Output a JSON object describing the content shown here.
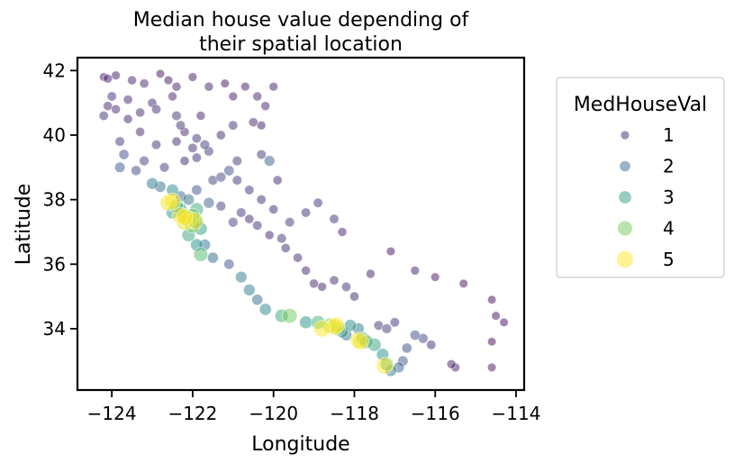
{
  "chart_data": {
    "type": "scatter",
    "title_lines": [
      "Median house value depending of",
      "their spatial location"
    ],
    "xlabel": "Longitude",
    "ylabel": "Latitude",
    "xlim": [
      -124.85,
      -113.8
    ],
    "ylim": [
      32.1,
      42.4
    ],
    "xticks": [
      -124,
      -122,
      -120,
      -118,
      -116,
      -114
    ],
    "xtick_labels": [
      "−124",
      "−122",
      "−120",
      "−118",
      "−116",
      "−114"
    ],
    "yticks": [
      34,
      36,
      38,
      40,
      42
    ],
    "ytick_labels": [
      "34",
      "36",
      "38",
      "40",
      "42"
    ],
    "grid": false,
    "legend": {
      "title": "MedHouseVal",
      "placement": "outside-right",
      "entries": [
        {
          "label": "1",
          "value": 1,
          "color": "#443983"
        },
        {
          "label": "2",
          "value": 2,
          "color": "#31688e"
        },
        {
          "label": "3",
          "value": 3,
          "color": "#21918c"
        },
        {
          "label": "4",
          "value": 4,
          "color": "#5ec962"
        },
        {
          "label": "5",
          "value": 5,
          "color": "#fde725"
        }
      ]
    },
    "colormap": "viridis",
    "size_by": "MedHouseVal",
    "hue_by": "MedHouseVal",
    "point_alpha": 0.5,
    "points": [
      [
        -124.2,
        41.8,
        0.7
      ],
      [
        -124.1,
        41.75,
        0.9
      ],
      [
        -123.9,
        41.85,
        0.8
      ],
      [
        -123.5,
        41.7,
        0.9
      ],
      [
        -123.2,
        41.6,
        1.0
      ],
      [
        -122.8,
        41.9,
        0.7
      ],
      [
        -122.6,
        41.7,
        0.8
      ],
      [
        -122.4,
        41.5,
        0.9
      ],
      [
        -122.0,
        41.8,
        0.8
      ],
      [
        -121.6,
        41.5,
        0.9
      ],
      [
        -121.2,
        41.6,
        0.7
      ],
      [
        -120.7,
        41.5,
        0.8
      ],
      [
        -120.4,
        41.2,
        0.9
      ],
      [
        -120.2,
        40.9,
        0.9
      ],
      [
        -120.5,
        40.4,
        1.0
      ],
      [
        -121.0,
        40.3,
        1.1
      ],
      [
        -124.1,
        40.9,
        1.0
      ],
      [
        -124.2,
        40.6,
        1.1
      ],
      [
        -123.9,
        40.8,
        1.0
      ],
      [
        -123.6,
        40.5,
        0.9
      ],
      [
        -123.3,
        40.7,
        1.0
      ],
      [
        -122.9,
        40.8,
        1.1
      ],
      [
        -122.4,
        40.6,
        1.2
      ],
      [
        -122.3,
        40.3,
        1.1
      ],
      [
        -122.2,
        40.1,
        1.0
      ],
      [
        -121.9,
        39.9,
        1.1
      ],
      [
        -121.7,
        39.7,
        1.3
      ],
      [
        -121.6,
        39.5,
        1.2
      ],
      [
        -121.9,
        39.3,
        1.1
      ],
      [
        -122.2,
        39.2,
        1.0
      ],
      [
        -122.7,
        39.0,
        1.2
      ],
      [
        -123.2,
        39.2,
        1.3
      ],
      [
        -123.4,
        38.9,
        1.4
      ],
      [
        -123.7,
        39.4,
        1.5
      ],
      [
        -123.8,
        39.0,
        1.7
      ],
      [
        -123.0,
        38.5,
        2.3
      ],
      [
        -122.8,
        38.4,
        2.1
      ],
      [
        -122.5,
        38.3,
        2.6
      ],
      [
        -122.3,
        38.1,
        2.0
      ],
      [
        -122.1,
        38.0,
        2.2
      ],
      [
        -121.9,
        38.3,
        1.6
      ],
      [
        -121.5,
        38.6,
        1.3
      ],
      [
        -121.3,
        38.7,
        1.4
      ],
      [
        -121.1,
        38.9,
        1.6
      ],
      [
        -120.9,
        38.6,
        1.2
      ],
      [
        -120.6,
        38.3,
        1.1
      ],
      [
        -120.3,
        38.0,
        1.1
      ],
      [
        -120.0,
        37.7,
        1.0
      ],
      [
        -120.8,
        37.6,
        1.2
      ],
      [
        -121.0,
        37.3,
        1.3
      ],
      [
        -121.3,
        37.8,
        1.3
      ],
      [
        -121.6,
        37.9,
        1.9
      ],
      [
        -121.9,
        37.7,
        3.2
      ],
      [
        -122.0,
        37.5,
        4.0
      ],
      [
        -122.1,
        37.4,
        4.6
      ],
      [
        -122.2,
        37.5,
        3.6
      ],
      [
        -122.3,
        37.7,
        3.0
      ],
      [
        -122.4,
        37.8,
        3.4
      ],
      [
        -122.5,
        37.6,
        2.8
      ],
      [
        -122.2,
        37.3,
        4.8
      ],
      [
        -122.0,
        37.2,
        4.2
      ],
      [
        -121.9,
        37.3,
        3.3
      ],
      [
        -121.8,
        37.1,
        3.0
      ],
      [
        -122.1,
        36.9,
        3.1
      ],
      [
        -121.9,
        36.6,
        2.7
      ],
      [
        -121.7,
        36.6,
        2.2
      ],
      [
        -121.8,
        36.3,
        3.6
      ],
      [
        -121.5,
        36.2,
        2.0
      ],
      [
        -121.1,
        36.0,
        1.6
      ],
      [
        -120.8,
        35.6,
        2.3
      ],
      [
        -120.6,
        35.2,
        2.4
      ],
      [
        -120.4,
        34.9,
        2.0
      ],
      [
        -120.2,
        34.6,
        2.5
      ],
      [
        -119.8,
        34.4,
        3.2
      ],
      [
        -119.6,
        34.4,
        4.0
      ],
      [
        -119.2,
        34.2,
        2.8
      ],
      [
        -118.9,
        34.2,
        3.4
      ],
      [
        -118.6,
        34.1,
        4.1
      ],
      [
        -118.4,
        34.0,
        3.8
      ],
      [
        -118.3,
        33.9,
        2.4
      ],
      [
        -118.2,
        33.8,
        2.2
      ],
      [
        -118.1,
        34.1,
        2.6
      ],
      [
        -117.9,
        34.0,
        2.3
      ],
      [
        -117.8,
        33.7,
        3.0
      ],
      [
        -117.7,
        33.6,
        3.3
      ],
      [
        -117.5,
        33.5,
        3.1
      ],
      [
        -117.3,
        33.2,
        2.7
      ],
      [
        -117.2,
        32.9,
        3.2
      ],
      [
        -117.1,
        32.7,
        2.3
      ],
      [
        -116.9,
        32.8,
        1.9
      ],
      [
        -116.8,
        33.0,
        1.7
      ],
      [
        -116.7,
        33.4,
        1.5
      ],
      [
        -117.2,
        34.0,
        1.3
      ],
      [
        -117.4,
        34.1,
        1.2
      ],
      [
        -117.0,
        34.2,
        1.1
      ],
      [
        -116.5,
        33.8,
        1.5
      ],
      [
        -116.3,
        33.7,
        1.4
      ],
      [
        -116.1,
        33.5,
        1.1
      ],
      [
        -115.6,
        32.9,
        0.9
      ],
      [
        -115.5,
        32.8,
        0.8
      ],
      [
        -114.6,
        32.8,
        0.7
      ],
      [
        -114.6,
        33.6,
        0.6
      ],
      [
        -114.5,
        34.4,
        0.7
      ],
      [
        -114.6,
        34.9,
        0.6
      ],
      [
        -114.3,
        34.2,
        0.6
      ],
      [
        -115.3,
        35.4,
        0.7
      ],
      [
        -116.0,
        35.6,
        0.7
      ],
      [
        -116.5,
        35.8,
        0.8
      ],
      [
        -117.1,
        36.4,
        0.7
      ],
      [
        -117.6,
        35.7,
        0.9
      ],
      [
        -118.0,
        35.0,
        1.0
      ],
      [
        -118.2,
        35.3,
        1.1
      ],
      [
        -118.5,
        35.5,
        1.0
      ],
      [
        -118.8,
        35.3,
        0.9
      ],
      [
        -119.0,
        35.4,
        1.0
      ],
      [
        -119.2,
        35.8,
        0.9
      ],
      [
        -119.4,
        36.2,
        1.0
      ],
      [
        -119.7,
        36.5,
        1.0
      ],
      [
        -119.8,
        36.8,
        1.2
      ],
      [
        -120.1,
        36.9,
        0.9
      ],
      [
        -120.4,
        37.2,
        1.1
      ],
      [
        -120.6,
        37.4,
        1.0
      ],
      [
        -119.6,
        37.3,
        1.2
      ],
      [
        -119.2,
        37.6,
        1.1
      ],
      [
        -118.9,
        37.9,
        1.1
      ],
      [
        -118.5,
        37.4,
        1.1
      ],
      [
        -118.3,
        37.0,
        0.9
      ],
      [
        -119.9,
        38.6,
        1.0
      ],
      [
        -120.1,
        39.2,
        1.8
      ],
      [
        -120.3,
        39.4,
        1.2
      ],
      [
        -120.9,
        39.2,
        1.2
      ],
      [
        -121.3,
        40.0,
        1.0
      ],
      [
        -121.8,
        40.6,
        0.9
      ],
      [
        -120.3,
        40.3,
        0.8
      ],
      [
        -120.0,
        41.5,
        0.8
      ],
      [
        -121.0,
        41.2,
        0.8
      ],
      [
        -122.5,
        41.2,
        0.9
      ],
      [
        -123.0,
        41.0,
        1.0
      ],
      [
        -123.6,
        41.1,
        1.0
      ],
      [
        -124.0,
        41.2,
        1.1
      ],
      [
        -123.8,
        39.8,
        1.2
      ],
      [
        -123.3,
        40.1,
        1.0
      ],
      [
        -122.9,
        39.7,
        1.1
      ],
      [
        -122.4,
        39.8,
        1.0
      ],
      [
        -122.0,
        39.6,
        1.1
      ],
      [
        -122.6,
        37.9,
        4.9
      ],
      [
        -122.5,
        37.95,
        5.0
      ],
      [
        -122.3,
        37.5,
        5.0
      ],
      [
        -122.2,
        37.45,
        5.0
      ],
      [
        -121.95,
        37.35,
        4.9
      ],
      [
        -118.5,
        34.05,
        5.0
      ],
      [
        -118.45,
        34.1,
        5.0
      ],
      [
        -118.8,
        34.0,
        5.0
      ],
      [
        -117.9,
        33.65,
        4.8
      ],
      [
        -117.85,
        33.6,
        5.0
      ],
      [
        -117.25,
        32.85,
        5.0
      ]
    ]
  }
}
